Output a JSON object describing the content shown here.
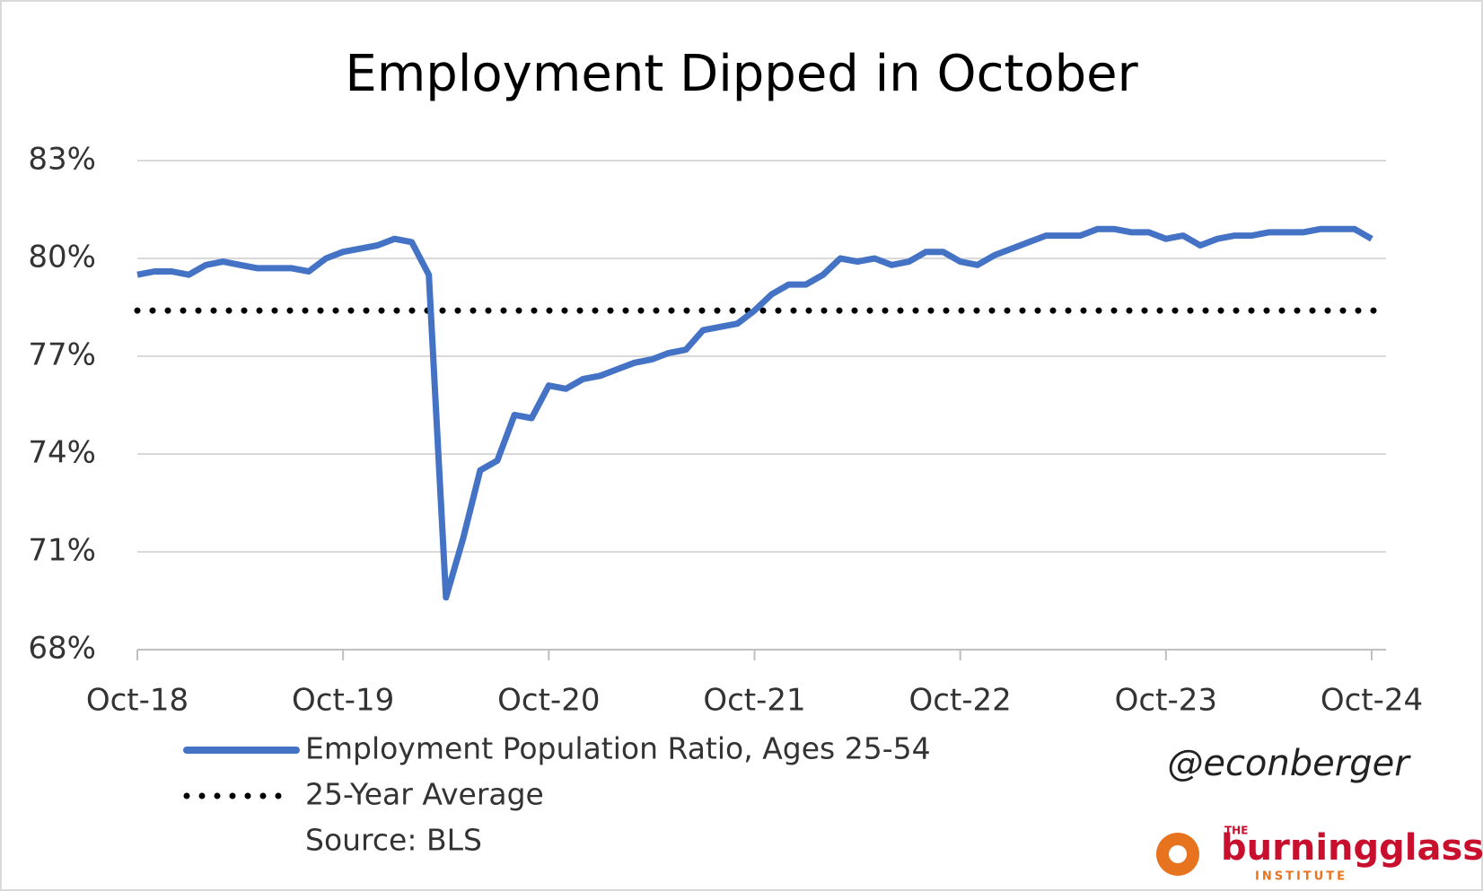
{
  "chart_data": {
    "type": "line",
    "title": "Employment Dipped in October",
    "categories": [
      "Oct-18",
      null,
      null,
      null,
      null,
      null,
      null,
      null,
      null,
      null,
      null,
      null,
      "Oct-19",
      null,
      null,
      null,
      null,
      null,
      null,
      null,
      null,
      null,
      null,
      null,
      "Oct-20",
      null,
      null,
      null,
      null,
      null,
      null,
      null,
      null,
      null,
      null,
      null,
      "Oct-21",
      null,
      null,
      null,
      null,
      null,
      null,
      null,
      null,
      null,
      null,
      null,
      "Oct-22",
      null,
      null,
      null,
      null,
      null,
      null,
      null,
      null,
      null,
      null,
      null,
      "Oct-23",
      null,
      null,
      null,
      null,
      null,
      null,
      null,
      null,
      null,
      null,
      null,
      "Oct-24"
    ],
    "series": [
      {
        "name": "Employment Population Ratio, Ages 25-54",
        "color": "#4472c4",
        "values": [
          79.5,
          79.6,
          79.6,
          79.5,
          79.8,
          79.9,
          79.8,
          79.7,
          79.7,
          79.7,
          79.6,
          80.0,
          80.2,
          80.3,
          80.4,
          80.6,
          80.5,
          79.5,
          69.6,
          71.4,
          73.5,
          73.8,
          75.2,
          75.1,
          76.1,
          76.0,
          76.3,
          76.4,
          76.6,
          76.8,
          76.9,
          77.1,
          77.2,
          77.8,
          77.9,
          78.0,
          78.4,
          78.9,
          79.2,
          79.2,
          79.5,
          80.0,
          79.9,
          80.0,
          79.8,
          79.9,
          80.2,
          80.2,
          79.9,
          79.8,
          80.1,
          80.3,
          80.5,
          80.7,
          80.7,
          80.7,
          80.9,
          80.9,
          80.8,
          80.8,
          80.6,
          80.7,
          80.4,
          80.6,
          80.7,
          80.7,
          80.8,
          80.8,
          80.8,
          80.9,
          80.9,
          80.9,
          80.6
        ]
      }
    ],
    "reference_lines": [
      {
        "name": "25-Year Average",
        "value": 78.4,
        "color": "#000000",
        "style": "dotted"
      }
    ],
    "ylim": [
      68,
      83
    ],
    "yticks": [
      {
        "value": 68,
        "label": "68%"
      },
      {
        "value": 71,
        "label": "71%"
      },
      {
        "value": 74,
        "label": "74%"
      },
      {
        "value": 77,
        "label": "77%"
      },
      {
        "value": 80,
        "label": "80%"
      },
      {
        "value": 83,
        "label": "83%"
      }
    ],
    "grid": true,
    "source": "Source: BLS",
    "credit": "@econberger",
    "logo": {
      "top": "THE",
      "name": "burningglass",
      "bottom": "INSTITUTE"
    }
  }
}
